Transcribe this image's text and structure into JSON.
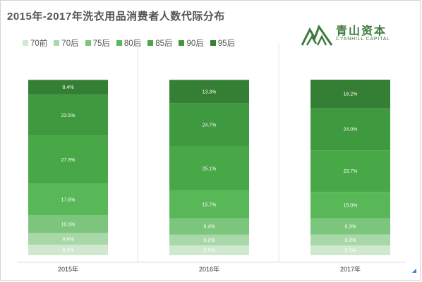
{
  "title": "2015年-2017年洗衣用品消费者人数代际分布",
  "logo": {
    "name": "青山资本",
    "subtitle": "CYANHILL CAPITAL",
    "icon": "mountain-icon"
  },
  "colors": {
    "70前": "#cfe8cf",
    "70后": "#a8d8a8",
    "75后": "#7cc57c",
    "80后": "#58b858",
    "85后": "#48a848",
    "90后": "#3f993f",
    "95后": "#347f34"
  },
  "chart_data": {
    "type": "bar",
    "stacked": true,
    "categories": [
      "2015年",
      "2016年",
      "2017年"
    ],
    "series": [
      {
        "name": "70前",
        "values": [
          6.0,
          5.5,
          5.5
        ],
        "labels": [
          "6.0%",
          "5.5%",
          "5.5%"
        ]
      },
      {
        "name": "70后",
        "values": [
          6.6,
          6.2,
          6.3
        ],
        "labels": [
          "6.6%",
          "6.2%",
          "6.3%"
        ]
      },
      {
        "name": "75后",
        "values": [
          10.3,
          9.4,
          9.3
        ],
        "labels": [
          "10.3%",
          "9.4%",
          "9.3%"
        ]
      },
      {
        "name": "80后",
        "values": [
          17.8,
          15.7,
          15.0
        ],
        "labels": [
          "17.8%",
          "15.7%",
          "15.0%"
        ]
      },
      {
        "name": "85后",
        "values": [
          27.3,
          25.1,
          23.7
        ],
        "labels": [
          "27.3%",
          "25.1%",
          "23.7%"
        ]
      },
      {
        "name": "90后",
        "values": [
          23.5,
          24.7,
          24.0
        ],
        "labels": [
          "23.5%",
          "24.7%",
          "24.0%"
        ]
      },
      {
        "name": "95后",
        "values": [
          8.4,
          13.3,
          16.2
        ],
        "labels": [
          "8.4%",
          "13.3%",
          "16.2%"
        ]
      }
    ],
    "ylim": [
      0,
      100
    ],
    "legend_position": "top-left",
    "grid": false
  }
}
